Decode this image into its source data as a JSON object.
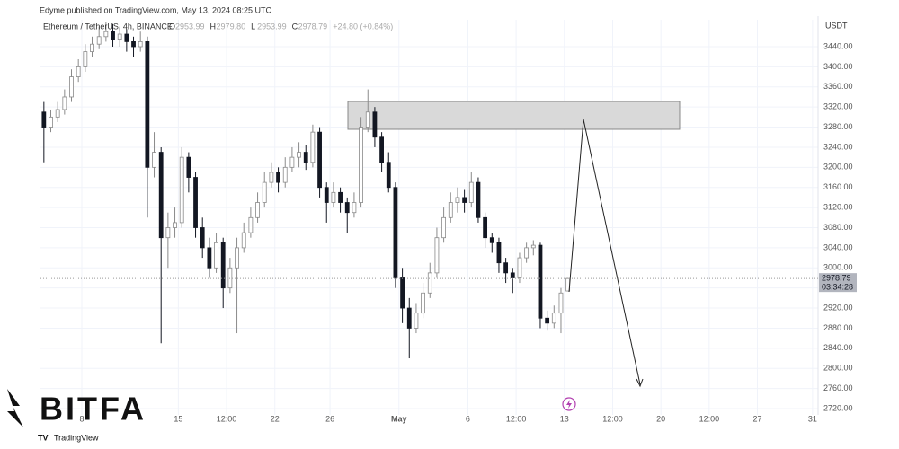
{
  "header": {
    "published": "Edyme published on TradingView.com, May 13, 2024 08:25 UTC"
  },
  "chart_data": {
    "type": "candlestick",
    "symbol": "Ethereum / TetherUS, 4h, BINANCE",
    "ohlc": [
      {
        "key": "O",
        "value": "2953.99"
      },
      {
        "key": "H",
        "value": "2979.80"
      },
      {
        "key": "L",
        "value": "2953.99"
      },
      {
        "key": "C",
        "value": "2978.79"
      }
    ],
    "change": "+24.80 (+0.84%)",
    "currency": "USDT",
    "countdown": "03:34:28",
    "x": [
      5.25,
      5.75,
      6.25,
      6.75,
      7.25,
      7.75,
      8.25,
      8.75,
      9.25,
      9.75,
      10.25,
      10.75,
      11.25,
      11.75,
      12.25,
      12.75,
      13.25,
      13.75,
      14.25,
      14.75,
      15.25,
      15.75,
      16.25,
      16.75,
      17.25,
      17.75,
      18.25,
      18.75,
      19.25,
      19.75,
      20.25,
      20.75,
      21.25,
      21.75,
      22.25,
      22.75,
      23.25,
      23.75,
      24.25,
      24.75,
      25.25,
      25.75,
      26.25,
      26.75,
      27.25,
      27.75,
      28.25,
      28.75,
      29.25,
      29.75,
      30.25,
      30.75,
      31.25,
      31.75,
      32.25,
      32.75,
      33.25,
      33.75,
      34.25,
      34.75,
      35.25,
      35.75,
      36.25,
      36.75,
      37.25,
      37.75,
      38.25,
      38.75,
      39.25,
      39.75,
      40.25,
      40.75,
      41.25,
      41.75,
      42.25,
      42.75,
      43.25
    ],
    "open": [
      3310,
      3280,
      3300,
      3315,
      3340,
      3380,
      3400,
      3430,
      3445,
      3460,
      3470,
      3455,
      3465,
      3450,
      3440,
      3450,
      3200,
      3230,
      3060,
      3080,
      3090,
      3220,
      3180,
      3080,
      3040,
      3000,
      3050,
      2960,
      3000,
      3040,
      3070,
      3100,
      3130,
      3170,
      3190,
      3170,
      3200,
      3220,
      3230,
      3210,
      3270,
      3160,
      3130,
      3150,
      3130,
      3110,
      3130,
      3280,
      3310,
      3260,
      3210,
      3160,
      2980,
      2920,
      2880,
      2910,
      2950,
      2990,
      3060,
      3100,
      3130,
      3140,
      3130,
      3170,
      3100,
      3060,
      3050,
      3010,
      2990,
      2980,
      3020,
      3040,
      3045,
      2900,
      2890,
      2910,
      2953.99
    ],
    "high": [
      3330,
      3315,
      3330,
      3355,
      3395,
      3415,
      3445,
      3460,
      3480,
      3490,
      3485,
      3480,
      3475,
      3460,
      3470,
      3460,
      3270,
      3240,
      3110,
      3120,
      3240,
      3230,
      3190,
      3100,
      3060,
      3070,
      3060,
      3020,
      3060,
      3090,
      3120,
      3150,
      3190,
      3210,
      3200,
      3220,
      3240,
      3250,
      3245,
      3285,
      3280,
      3170,
      3170,
      3160,
      3140,
      3150,
      3300,
      3355,
      3320,
      3270,
      3230,
      3170,
      3000,
      2940,
      2930,
      2970,
      3010,
      3080,
      3120,
      3150,
      3160,
      3155,
      3190,
      3180,
      3110,
      3070,
      3060,
      3020,
      3000,
      3030,
      3050,
      3055,
      3050,
      2915,
      2925,
      2960,
      2979.8
    ],
    "low": [
      3210,
      3270,
      3290,
      3305,
      3330,
      3370,
      3390,
      3420,
      3435,
      3450,
      3440,
      3440,
      3430,
      3420,
      3430,
      3100,
      3180,
      2850,
      3000,
      3060,
      3080,
      3150,
      3060,
      3020,
      2980,
      2990,
      2920,
      2950,
      2870,
      3030,
      3060,
      3090,
      3120,
      3160,
      3150,
      3160,
      3190,
      3200,
      3195,
      3200,
      3140,
      3090,
      3120,
      3110,
      3070,
      3100,
      3120,
      3270,
      3240,
      3190,
      3150,
      2960,
      2890,
      2820,
      2870,
      2900,
      2940,
      2980,
      3050,
      3090,
      3110,
      3110,
      3120,
      3090,
      3040,
      3030,
      2990,
      2970,
      2950,
      2970,
      3010,
      3025,
      2880,
      2875,
      2880,
      2870,
      2953.99
    ],
    "close": [
      3280,
      3300,
      3315,
      3340,
      3380,
      3400,
      3430,
      3445,
      3460,
      3470,
      3455,
      3465,
      3450,
      3440,
      3450,
      3200,
      3230,
      3060,
      3080,
      3090,
      3220,
      3180,
      3080,
      3040,
      3000,
      3050,
      2960,
      3000,
      3040,
      3070,
      3100,
      3130,
      3170,
      3190,
      3170,
      3200,
      3220,
      3230,
      3210,
      3270,
      3160,
      3130,
      3150,
      3130,
      3110,
      3130,
      3280,
      3310,
      3260,
      3210,
      3160,
      2980,
      2920,
      2880,
      2910,
      2950,
      2990,
      3060,
      3100,
      3130,
      3140,
      3130,
      3170,
      3100,
      3060,
      3050,
      3010,
      2990,
      2980,
      3020,
      3040,
      3045,
      2900,
      2890,
      2910,
      2950,
      2978.79
    ],
    "up_color": "#ffffff",
    "up_stroke": "#8a8a8a",
    "down_color": "#131722",
    "xlim": [
      5,
      61.4
    ],
    "xticks": [
      8,
      15,
      {
        "value": 18.5,
        "label": "12:00"
      },
      22,
      26,
      {
        "value": 31,
        "label": "May"
      },
      {
        "value": 36,
        "label": "6"
      },
      {
        "value": 39.5,
        "label": "12:00"
      },
      {
        "value": 43,
        "label": "13"
      },
      {
        "value": 46.5,
        "label": "12:00"
      },
      {
        "value": 50,
        "label": "20"
      },
      {
        "value": 53.5,
        "label": "12:00"
      },
      {
        "value": 57,
        "label": "27"
      },
      {
        "value": 61,
        "label": "31"
      }
    ],
    "ylim": [
      2707.5,
      3493.6
    ],
    "yticks": [
      {
        "value": 2720,
        "label": "2720.00"
      },
      {
        "value": 2760,
        "label": "2760.00"
      },
      {
        "value": 2800,
        "label": "2800.00"
      },
      {
        "value": 2840,
        "label": "2840.00"
      },
      {
        "value": 2880,
        "label": "2880.00"
      },
      {
        "value": 2920,
        "label": "2920.00"
      },
      {
        "value": 2960,
        "label": "2960.00"
      },
      {
        "value": 3000,
        "label": "3000.00"
      },
      {
        "value": 3040,
        "label": "3040.00"
      },
      {
        "value": 3080,
        "label": "3080.00"
      },
      {
        "value": 3120,
        "label": "3120.00"
      },
      {
        "value": 3160,
        "label": "3160.00"
      },
      {
        "value": 3200,
        "label": "3200.00"
      },
      {
        "value": 3240,
        "label": "3240.00"
      },
      {
        "value": 3280,
        "label": "3280.00"
      },
      {
        "value": 3320,
        "label": "3320.00"
      },
      {
        "value": 3360,
        "label": "3360.00"
      },
      {
        "value": 3400,
        "label": "3400.00"
      },
      {
        "value": 3440,
        "label": "3440.00"
      }
    ],
    "grid": true
  },
  "branding": {
    "logo": "BITFA",
    "platform": "TradingView"
  }
}
